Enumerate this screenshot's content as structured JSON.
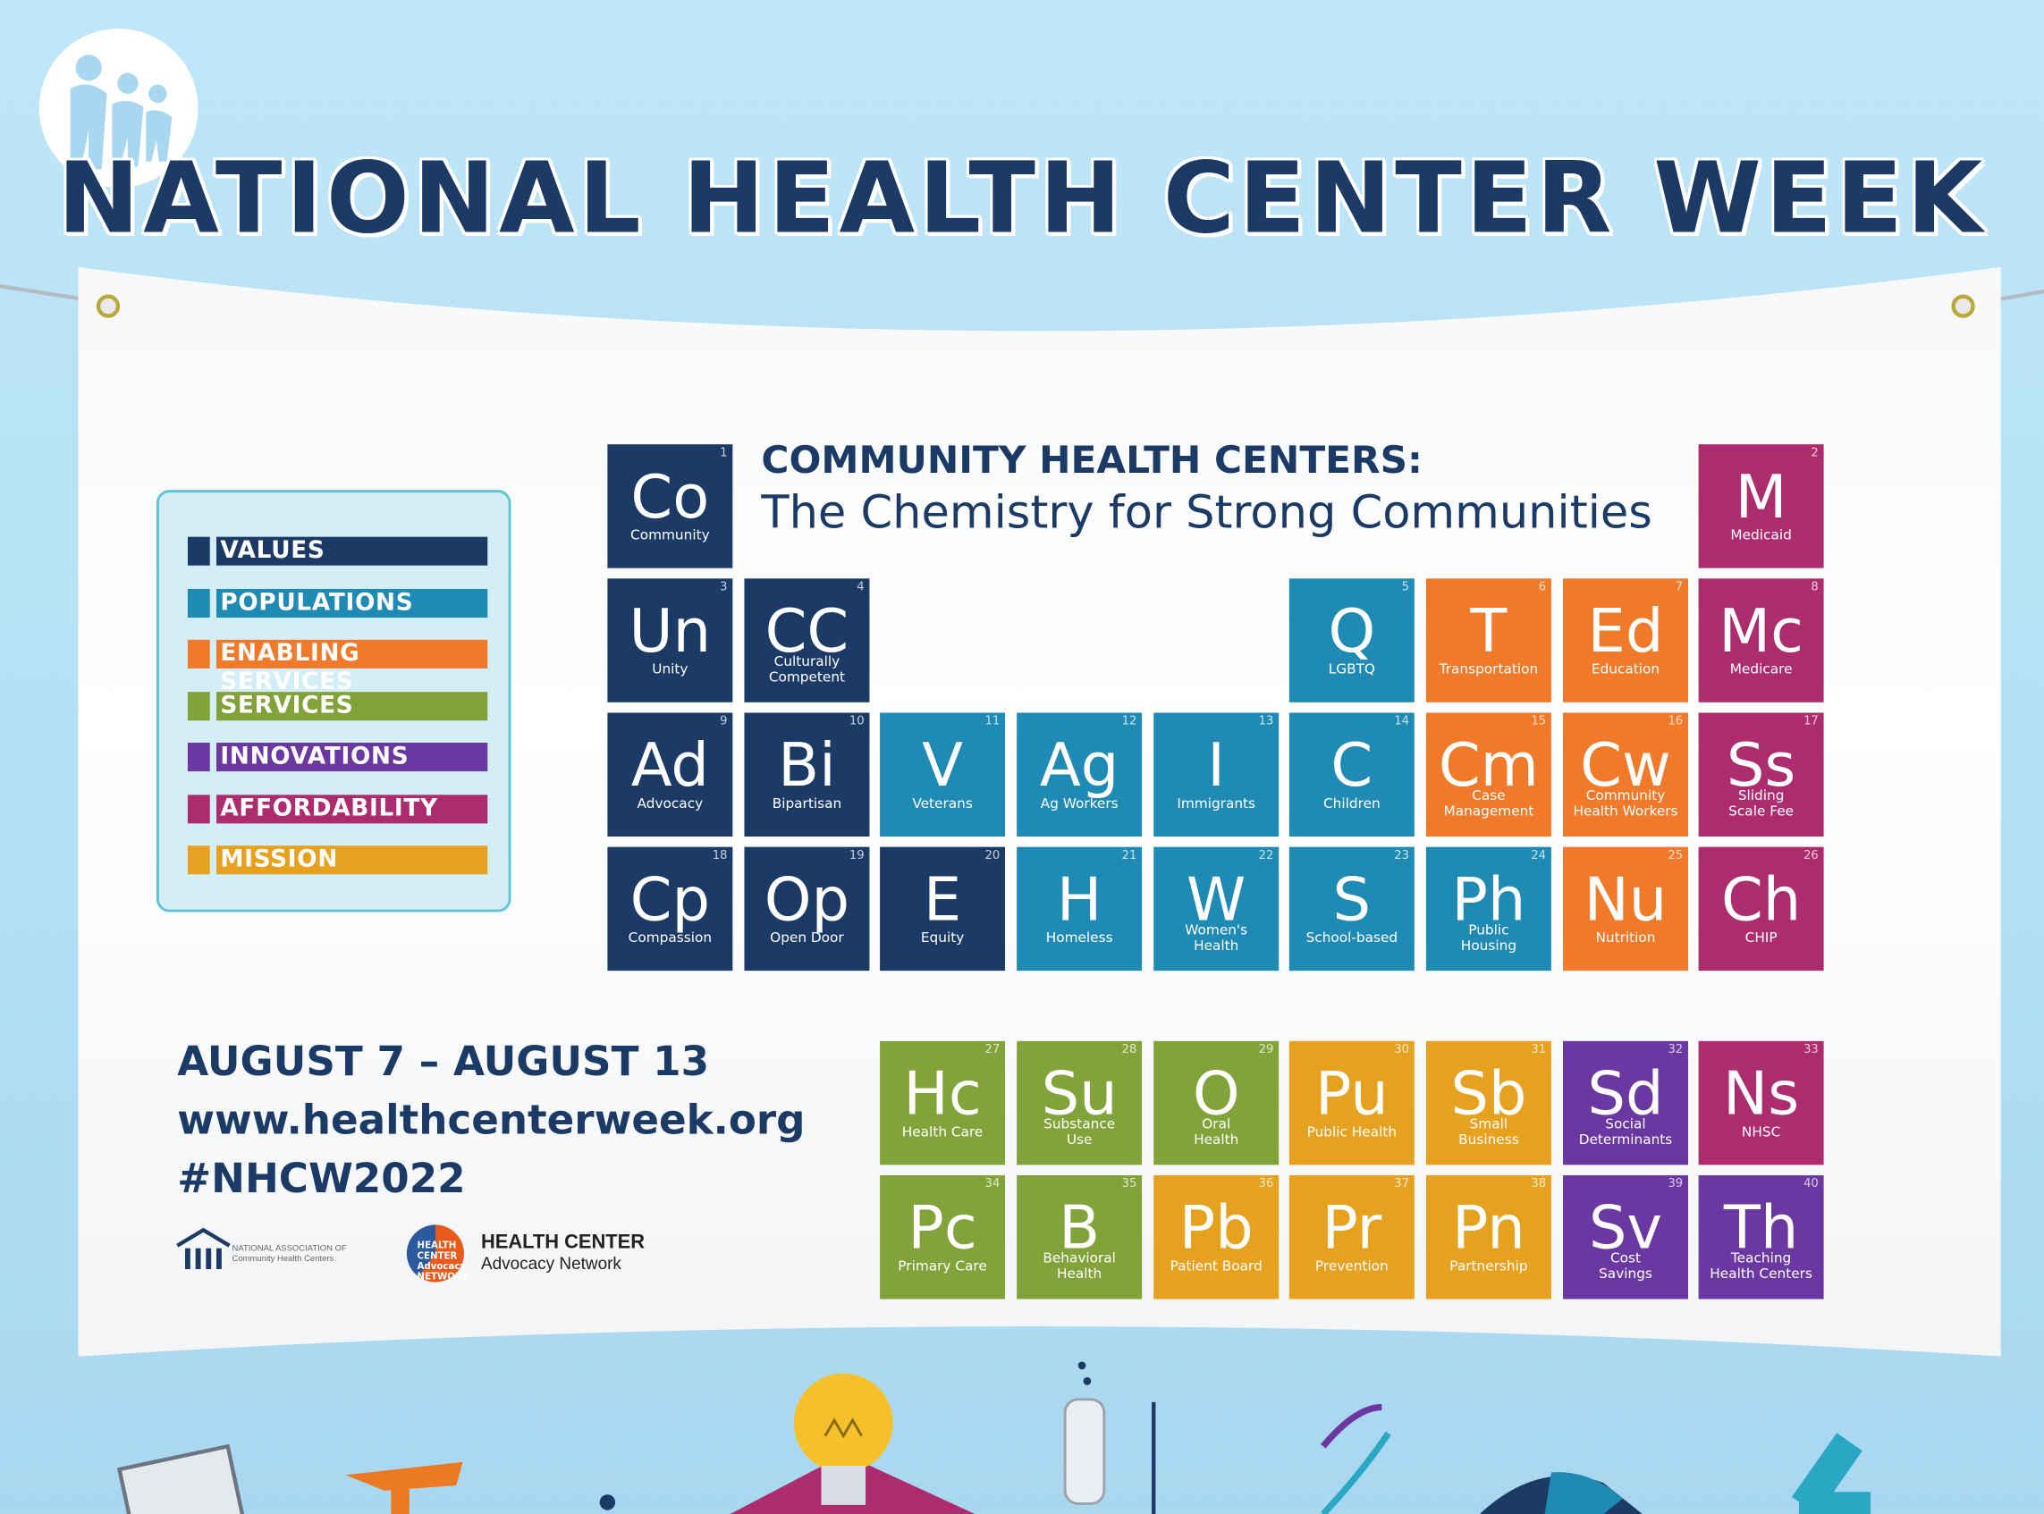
{
  "header": {
    "title": "NATIONAL HEALTH CENTER WEEK"
  },
  "subtitle": {
    "line1": "COMMUNITY HEALTH CENTERS:",
    "line2": "The Chemistry for Strong Communities"
  },
  "legend": [
    {
      "label": "VALUES",
      "color": "#1c3a66"
    },
    {
      "label": "POPULATIONS",
      "color": "#1f8ab4"
    },
    {
      "label": "ENABLING SERVICES",
      "color": "#f07a2a"
    },
    {
      "label": "SERVICES",
      "color": "#82a23a"
    },
    {
      "label": "INNOVATIONS",
      "color": "#6b37a0"
    },
    {
      "label": "AFFORDABILITY",
      "color": "#ad2c6e"
    },
    {
      "label": "MISSION",
      "color": "#e6a11e"
    }
  ],
  "colors": {
    "values": "#1c3a66",
    "populations": "#1f8ab4",
    "enabling": "#f07a2a",
    "services": "#82a23a",
    "innovations": "#6b37a0",
    "affordability": "#ad2c6e",
    "mission": "#e6a11e",
    "title": "#1c3a66",
    "background": "#bfe6f7"
  },
  "elements": [
    {
      "num": "1",
      "symbol": "Co",
      "word": "Community",
      "category": "values"
    },
    {
      "num": "2",
      "symbol": "M",
      "word": "Medicaid",
      "category": "affordability"
    },
    {
      "num": "3",
      "symbol": "Un",
      "word": "Unity",
      "category": "values"
    },
    {
      "num": "4",
      "symbol": "CC",
      "word": "Culturally\nCompetent",
      "category": "values"
    },
    {
      "num": "5",
      "symbol": "Q",
      "word": "LGBTQ",
      "category": "populations"
    },
    {
      "num": "6",
      "symbol": "T",
      "word": "Transportation",
      "category": "enabling"
    },
    {
      "num": "7",
      "symbol": "Ed",
      "word": "Education",
      "category": "enabling"
    },
    {
      "num": "8",
      "symbol": "Mc",
      "word": "Medicare",
      "category": "affordability"
    },
    {
      "num": "9",
      "symbol": "Ad",
      "word": "Advocacy",
      "category": "values"
    },
    {
      "num": "10",
      "symbol": "Bi",
      "word": "Bipartisan",
      "category": "values"
    },
    {
      "num": "11",
      "symbol": "V",
      "word": "Veterans",
      "category": "populations"
    },
    {
      "num": "12",
      "symbol": "Ag",
      "word": "Ag Workers",
      "category": "populations"
    },
    {
      "num": "13",
      "symbol": "I",
      "word": "Immigrants",
      "category": "populations"
    },
    {
      "num": "14",
      "symbol": "C",
      "word": "Children",
      "category": "populations"
    },
    {
      "num": "15",
      "symbol": "Cm",
      "word": "Case\nManagement",
      "category": "enabling"
    },
    {
      "num": "16",
      "symbol": "Cw",
      "word": "Community\nHealth Workers",
      "category": "enabling"
    },
    {
      "num": "17",
      "symbol": "Ss",
      "word": "Sliding\nScale Fee",
      "category": "affordability"
    },
    {
      "num": "18",
      "symbol": "Cp",
      "word": "Compassion",
      "category": "values"
    },
    {
      "num": "19",
      "symbol": "Op",
      "word": "Open Door",
      "category": "values"
    },
    {
      "num": "20",
      "symbol": "E",
      "word": "Equity",
      "category": "values"
    },
    {
      "num": "21",
      "symbol": "H",
      "word": "Homeless",
      "category": "populations"
    },
    {
      "num": "22",
      "symbol": "W",
      "word": "Women's\nHealth",
      "category": "populations"
    },
    {
      "num": "23",
      "symbol": "S",
      "word": "School-based",
      "category": "populations"
    },
    {
      "num": "24",
      "symbol": "Ph",
      "word": "Public\nHousing",
      "category": "populations"
    },
    {
      "num": "25",
      "symbol": "Nu",
      "word": "Nutrition",
      "category": "enabling"
    },
    {
      "num": "26",
      "symbol": "Ch",
      "word": "CHIP",
      "category": "affordability"
    },
    {
      "num": "27",
      "symbol": "Hc",
      "word": "Health Care",
      "category": "services"
    },
    {
      "num": "28",
      "symbol": "Su",
      "word": "Substance\nUse",
      "category": "services"
    },
    {
      "num": "29",
      "symbol": "O",
      "word": "Oral\nHealth",
      "category": "services"
    },
    {
      "num": "30",
      "symbol": "Pu",
      "word": "Public Health",
      "category": "mission"
    },
    {
      "num": "31",
      "symbol": "Sb",
      "word": "Small\nBusiness",
      "category": "mission"
    },
    {
      "num": "32",
      "symbol": "Sd",
      "word": "Social\nDeterminants",
      "category": "innovations"
    },
    {
      "num": "33",
      "symbol": "Ns",
      "word": "NHSC",
      "category": "affordability"
    },
    {
      "num": "34",
      "symbol": "Pc",
      "word": "Primary Care",
      "category": "services"
    },
    {
      "num": "35",
      "symbol": "B",
      "word": "Behavioral\nHealth",
      "category": "services"
    },
    {
      "num": "36",
      "symbol": "Pb",
      "word": "Patient Board",
      "category": "mission"
    },
    {
      "num": "37",
      "symbol": "Pr",
      "word": "Prevention",
      "category": "mission"
    },
    {
      "num": "38",
      "symbol": "Pn",
      "word": "Partnership",
      "category": "mission"
    },
    {
      "num": "39",
      "symbol": "Sv",
      "word": "Cost\nSavings",
      "category": "innovations"
    },
    {
      "num": "40",
      "symbol": "Th",
      "word": "Teaching\nHealth Centers",
      "category": "innovations"
    }
  ],
  "info": {
    "dates": "AUGUST 7 – AUGUST 13",
    "url": "www.healthcenterweek.org",
    "hashtag": "#NHCW2022"
  },
  "partners": {
    "nachc_line1": "NATIONAL ASSOCIATION OF",
    "nachc_line2": "Community Health Centers",
    "hcan_badge": "HEALTH CENTER Advocacy NETWORK",
    "hcan_line1": "HEALTH CENTER",
    "hcan_line2": "Advocacy Network"
  }
}
